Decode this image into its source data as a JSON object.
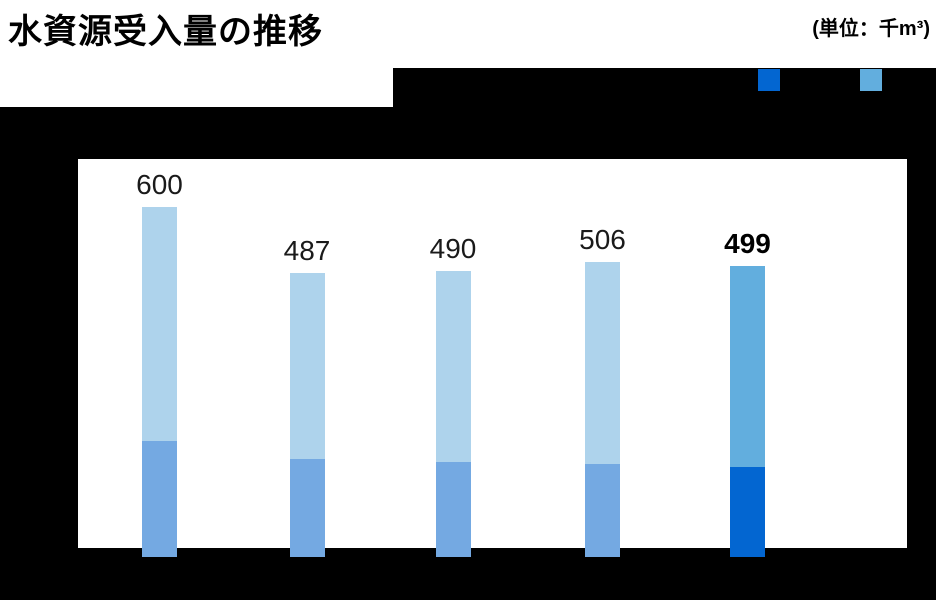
{
  "title": "水資源受入量の推移",
  "unit_label": "(単位：千m³)",
  "colors": {
    "panel": "#000000",
    "bar_upper_normal": "#aed3ec",
    "bar_lower_normal": "#74a9e2",
    "bar_upper_highlight": "#62aede",
    "bar_lower_highlight": "#0366d1",
    "value_label_text": "#1a1a1a"
  },
  "legend": {
    "position": "top-right",
    "items": [
      {
        "name": "dark-blue-series-swatch",
        "color": "#0366d1",
        "label": ""
      },
      {
        "name": "light-blue-series-swatch",
        "color": "#62aede",
        "label": ""
      }
    ]
  },
  "chart_data": {
    "type": "bar",
    "stacked": true,
    "title": "水資源受入量の推移",
    "unit": "千m³",
    "categories": [
      "",
      "",
      "",
      "",
      ""
    ],
    "totals": [
      600,
      487,
      490,
      506,
      499
    ],
    "series": [
      {
        "name": "lower-segment",
        "values": [
          199,
          168,
          163,
          159,
          154
        ]
      },
      {
        "name": "upper-segment",
        "values": [
          401,
          319,
          327,
          347,
          345
        ]
      }
    ],
    "value_labels": [
      "600",
      "487",
      "490",
      "506",
      "499"
    ],
    "highlighted_index": 4,
    "ylim": [
      0,
      600
    ],
    "grid": false,
    "x_axis_labels_visible": false
  }
}
